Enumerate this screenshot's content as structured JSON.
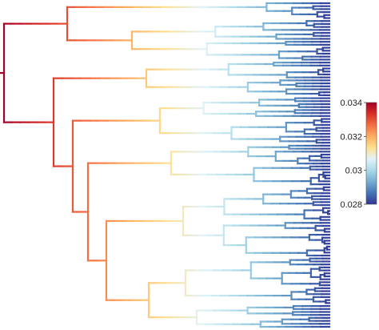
{
  "chart_data": {
    "type": "tree",
    "orientation": "left-to-right",
    "tip_count": 110,
    "color_scale": {
      "min": 0.028,
      "max": 0.034,
      "stops": [
        "#313695",
        "#4575b4",
        "#74add1",
        "#abd9e9",
        "#e0f3f8",
        "#fee090",
        "#fdae61",
        "#f46d43",
        "#d73027",
        "#a50026"
      ],
      "ticks": [
        {
          "value": 0.034,
          "label": "0.034"
        },
        {
          "value": 0.032,
          "label": "0.032"
        },
        {
          "value": 0.03,
          "label": "0.03"
        },
        {
          "value": 0.028,
          "label": "0.028"
        }
      ]
    },
    "clade_sizes": {
      "top": 20,
      "second": 12,
      "third": 16,
      "fourth": 14,
      "bottom": 48
    }
  }
}
